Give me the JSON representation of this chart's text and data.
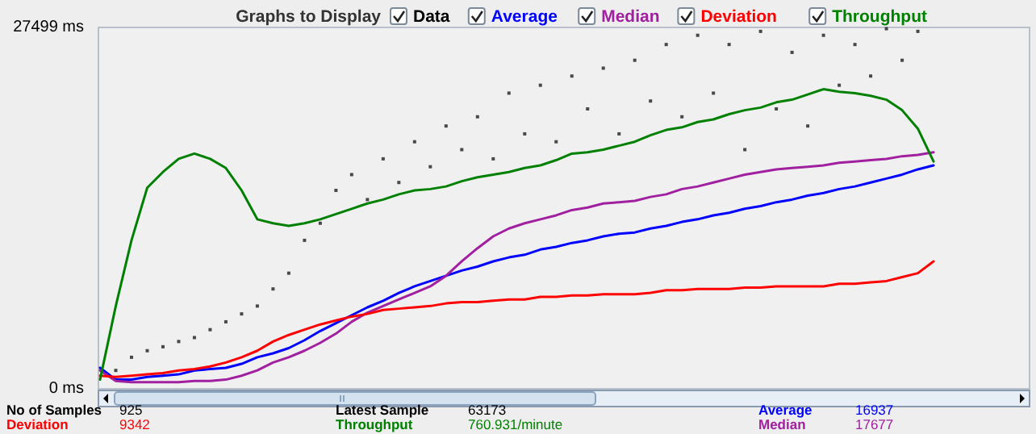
{
  "chart_data": {
    "type": "line",
    "legend_title": "Graphs to Display",
    "legend": "top",
    "grid": false,
    "marker": "none",
    "line_style": "solid",
    "categories": [
      null,
      null,
      null,
      null,
      null,
      null,
      null,
      null,
      null,
      null,
      null,
      null,
      null,
      null,
      null,
      null,
      null,
      null,
      null,
      null,
      null,
      null,
      null,
      null,
      null,
      null,
      null,
      null,
      null,
      null,
      null,
      null,
      null,
      null,
      null,
      null,
      null,
      null,
      null,
      null,
      null,
      null,
      null,
      null,
      null,
      null,
      null,
      null,
      null,
      null,
      null,
      null,
      null,
      null,
      null,
      null,
      null,
      null,
      null,
      null
    ],
    "ylim": [
      0,
      27499
    ],
    "yticks": [
      {
        "value": 27499,
        "label": "27499 ms"
      },
      {
        "value": 0,
        "label": "0 ms"
      }
    ],
    "series": [
      {
        "name": "Data",
        "type": "scatter",
        "marker": "square",
        "color": "#000000",
        "values": [
          null,
          1400,
          2400,
          2900,
          3200,
          3600,
          3900,
          4500,
          5100,
          5700,
          6300,
          7600,
          8800,
          11300,
          12600,
          15100,
          16300,
          14400,
          17500,
          15700,
          18800,
          16900,
          20000,
          18200,
          20700,
          17500,
          22500,
          19400,
          23100,
          18800,
          23800,
          21300,
          24400,
          19400,
          25000,
          21900,
          26200,
          20700,
          26900,
          22500,
          26200,
          18200,
          27200,
          21300,
          25600,
          20000,
          26900,
          23100,
          26200,
          23800,
          27400,
          25000,
          27200,
          null,
          null,
          null,
          null,
          null,
          null,
          null
        ]
      },
      {
        "name": "Average",
        "color": "#0000ff",
        "values": [
          1600,
          700,
          700,
          900,
          1000,
          1100,
          1400,
          1500,
          1600,
          1900,
          2400,
          2700,
          3100,
          3700,
          4400,
          5000,
          5600,
          6200,
          6700,
          7300,
          7800,
          8200,
          8600,
          9000,
          9300,
          9700,
          10000,
          10200,
          10600,
          10800,
          11100,
          11300,
          11600,
          11800,
          11900,
          12200,
          12400,
          12700,
          12900,
          13200,
          13400,
          13700,
          13900,
          14200,
          14400,
          14700,
          14900,
          15200,
          15400,
          15700,
          16000,
          16300,
          16700,
          17000,
          null,
          null,
          null,
          null,
          null,
          null
        ]
      },
      {
        "name": "Median",
        "color": "#a020a0",
        "values": [
          1400,
          600,
          500,
          500,
          500,
          500,
          600,
          600,
          700,
          1000,
          1400,
          2000,
          2400,
          2900,
          3500,
          4200,
          5100,
          5800,
          6300,
          6800,
          7300,
          7800,
          8600,
          9700,
          10700,
          11600,
          12200,
          12600,
          12900,
          13200,
          13600,
          13800,
          14100,
          14200,
          14300,
          14600,
          14800,
          15200,
          15400,
          15700,
          16000,
          16300,
          16500,
          16700,
          16800,
          16900,
          17000,
          17200,
          17300,
          17400,
          17500,
          17700,
          17800,
          18000,
          null,
          null,
          null,
          null,
          null,
          null
        ]
      },
      {
        "name": "Deviation",
        "color": "#ff0000",
        "values": [
          1000,
          900,
          1000,
          1100,
          1200,
          1400,
          1500,
          1700,
          2000,
          2400,
          2900,
          3600,
          4100,
          4500,
          4900,
          5200,
          5500,
          5700,
          6000,
          6100,
          6200,
          6300,
          6500,
          6600,
          6600,
          6700,
          6800,
          6800,
          7000,
          7000,
          7100,
          7100,
          7200,
          7200,
          7200,
          7300,
          7500,
          7500,
          7600,
          7600,
          7600,
          7700,
          7700,
          7800,
          7800,
          7800,
          7800,
          8000,
          8000,
          8100,
          8200,
          8500,
          8800,
          9700,
          null,
          null,
          null,
          null,
          null,
          null
        ]
      },
      {
        "name": "Throughput",
        "color": "#008000",
        "values": [
          700,
          6300,
          11300,
          15300,
          16500,
          17500,
          17900,
          17500,
          16800,
          15100,
          12900,
          12600,
          12400,
          12600,
          12900,
          13300,
          13700,
          14100,
          14400,
          14800,
          15100,
          15200,
          15400,
          15800,
          16100,
          16300,
          16500,
          16800,
          17000,
          17400,
          17900,
          18000,
          18200,
          18500,
          18800,
          19300,
          19700,
          19900,
          20300,
          20500,
          20900,
          21200,
          21400,
          21800,
          22000,
          22400,
          22800,
          22600,
          22500,
          22300,
          22000,
          21200,
          19800,
          17300,
          null,
          null,
          null,
          null,
          null,
          null
        ]
      }
    ],
    "annotations": [
      "No of Samples",
      "925",
      "Deviation",
      "9342",
      "Latest Sample",
      "63173",
      "Throughput",
      "760.931/minute",
      "Average",
      "16937",
      "Median",
      "17677"
    ]
  }
}
